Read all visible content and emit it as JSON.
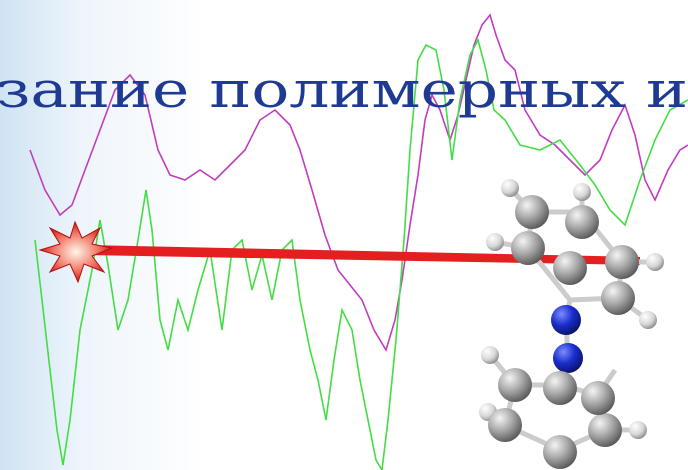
{
  "slide": {
    "heading_fragment": "зание полимерных и"
  }
}
